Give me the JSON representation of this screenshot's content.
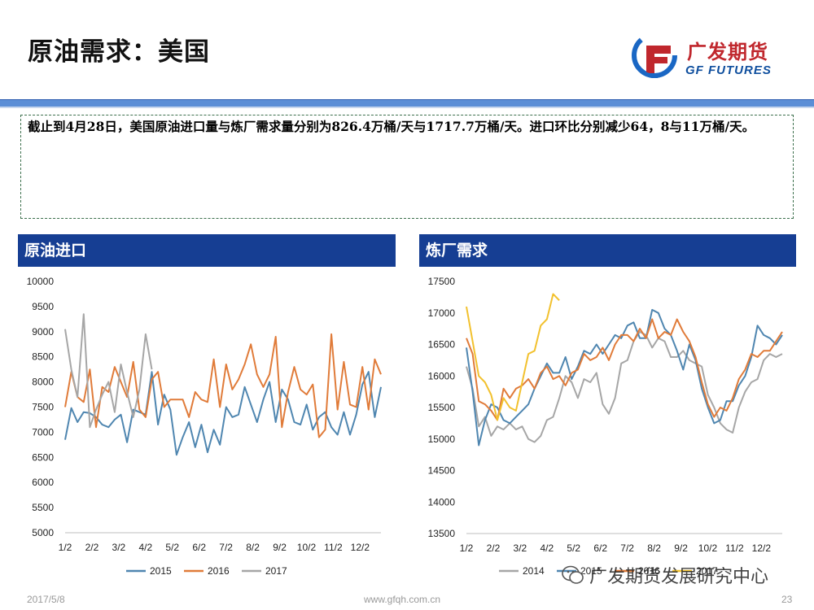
{
  "header": {
    "title": "原油需求：美国",
    "logo_cn": "广发期货",
    "logo_en": "GF FUTURES"
  },
  "summary": {
    "text": "截止到4月28日，美国原油进口量与炼厂需求量分别为826.4万桶/天与1717.7万桶/天。进口环比分别减少64，8与11万桶/天。"
  },
  "colors": {
    "header_bar": "#163e93",
    "rule": "#5b8ed6",
    "brand_red": "#c0272d",
    "brand_blue": "#0f4f9e"
  },
  "chart_data": [
    {
      "type": "line",
      "title": "原油进口",
      "xlabel": "",
      "ylabel": "",
      "ylim": [
        5000,
        10000
      ],
      "yticks": [
        "10000",
        "9500",
        "9000",
        "8500",
        "8000",
        "7500",
        "7000",
        "6500",
        "6000",
        "5500",
        "5000"
      ],
      "x_tick_labels": [
        "1/2",
        "2/2",
        "3/2",
        "4/2",
        "5/2",
        "6/2",
        "7/2",
        "8/2",
        "9/2",
        "10/2",
        "11/2",
        "12/2"
      ],
      "weeks": 52,
      "legend_position": "bottom",
      "series": [
        {
          "name": "2015",
          "color": "#4f86b0",
          "values": [
            6850,
            7480,
            7200,
            7400,
            7380,
            7300,
            7150,
            7100,
            7250,
            7350,
            6800,
            7450,
            7400,
            7350,
            8200,
            7150,
            7750,
            7450,
            6550,
            6900,
            7200,
            6700,
            7150,
            6600,
            7050,
            6750,
            7500,
            7300,
            7350,
            7900,
            7550,
            7200,
            7650,
            8000,
            7200,
            7850,
            7650,
            7200,
            7150,
            7550,
            7050,
            7300,
            7400,
            7100,
            6950,
            7400,
            6950,
            7350,
            7950,
            8200,
            7300,
            7900
          ]
        },
        {
          "name": "2016",
          "color": "#e07b39",
          "values": [
            7500,
            8200,
            7700,
            7600,
            8250,
            7100,
            7900,
            7800,
            8300,
            8000,
            7700,
            8400,
            7450,
            7300,
            8050,
            8200,
            7500,
            7650,
            7650,
            7650,
            7300,
            7800,
            7650,
            7600,
            8450,
            7500,
            8350,
            7850,
            8050,
            8350,
            8750,
            8150,
            7900,
            8150,
            8900,
            7100,
            7800,
            8300,
            7850,
            7750,
            7950,
            6900,
            7050,
            8950,
            7450,
            8400,
            7550,
            7500,
            8300,
            7450,
            8450,
            8150
          ]
        },
        {
          "name": "2017",
          "color": "#a6a6a6",
          "values": [
            9050,
            8250,
            7700,
            9350,
            7100,
            7450,
            7750,
            8000,
            7400,
            8350,
            7800,
            7300,
            7850,
            8950,
            8250
          ]
        }
      ]
    },
    {
      "type": "line",
      "title": "炼厂需求",
      "xlabel": "",
      "ylabel": "",
      "ylim": [
        13500,
        17500
      ],
      "yticks": [
        "17500",
        "17000",
        "16500",
        "16000",
        "15500",
        "15000",
        "14500",
        "14000",
        "13500"
      ],
      "x_tick_labels": [
        "1/2",
        "2/2",
        "3/2",
        "4/2",
        "5/2",
        "6/2",
        "7/2",
        "8/2",
        "9/2",
        "10/2",
        "11/2",
        "12/2"
      ],
      "weeks": 52,
      "legend_position": "bottom",
      "series": [
        {
          "name": "2014",
          "color": "#a6a6a6",
          "values": [
            16150,
            15800,
            15200,
            15350,
            15050,
            15200,
            15150,
            15250,
            15150,
            15200,
            15000,
            14950,
            15050,
            15300,
            15350,
            15650,
            16000,
            15900,
            15650,
            15950,
            15900,
            16050,
            15550,
            15400,
            15650,
            16200,
            16250,
            16550,
            16700,
            16650,
            16450,
            16600,
            16550,
            16300,
            16300,
            16400,
            16250,
            16200,
            16150,
            15700,
            15500,
            15250,
            15150,
            15100,
            15500,
            15750,
            15900,
            15950,
            16250,
            16350,
            16300,
            16350
          ]
        },
        {
          "name": "2015",
          "color": "#4f86b0",
          "values": [
            16450,
            15750,
            14900,
            15300,
            15550,
            15500,
            15300,
            15250,
            15350,
            15450,
            15550,
            15800,
            16000,
            16200,
            16050,
            16050,
            16300,
            15950,
            16150,
            16400,
            16350,
            16500,
            16350,
            16500,
            16650,
            16600,
            16800,
            16850,
            16600,
            16600,
            17050,
            17000,
            16750,
            16650,
            16400,
            16100,
            16500,
            16250,
            15800,
            15500,
            15250,
            15300,
            15600,
            15600,
            15850,
            16000,
            16300,
            16800,
            16650,
            16600,
            16500,
            16650
          ]
        },
        {
          "name": "2016",
          "color": "#e07b39",
          "values": [
            16600,
            16350,
            15600,
            15550,
            15450,
            15300,
            15800,
            15650,
            15800,
            15850,
            15950,
            15800,
            16050,
            16150,
            15950,
            16000,
            15850,
            16050,
            16100,
            16350,
            16250,
            16300,
            16450,
            16250,
            16500,
            16650,
            16650,
            16550,
            16750,
            16600,
            16900,
            16600,
            16700,
            16650,
            16900,
            16700,
            16550,
            16300,
            15900,
            15550,
            15350,
            15500,
            15450,
            15650,
            15950,
            16100,
            16350,
            16300,
            16400,
            16400,
            16550,
            16700
          ]
        },
        {
          "name": "2017",
          "color": "#f2c12e",
          "values": [
            17100,
            16550,
            16000,
            15900,
            15700,
            15300,
            15650,
            15500,
            15450,
            15900,
            16350,
            16400,
            16800,
            16900,
            17300,
            17200
          ]
        }
      ]
    }
  ],
  "footer": {
    "date": "2017/5/8",
    "url": "www.gfqh.com.cn",
    "page": "23",
    "watermark": "广发期货发展研究中心"
  }
}
